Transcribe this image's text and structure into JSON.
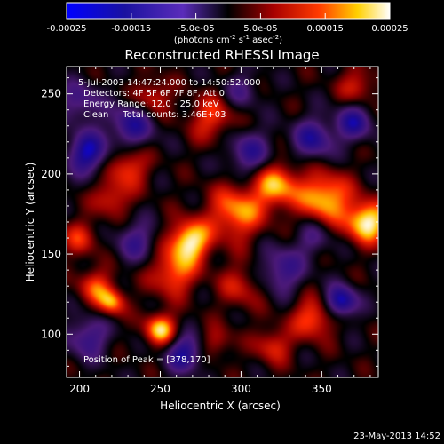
{
  "chart_data": {
    "type": "heatmap",
    "title": "Reconstructed RHESSI Image",
    "xlabel": "Heliocentric X (arcsec)",
    "ylabel": "Heliocentric Y (arcsec)",
    "xlim": [
      192,
      385
    ],
    "ylim": [
      73,
      267
    ],
    "x_ticks": [
      200,
      250,
      300,
      350
    ],
    "y_ticks": [
      100,
      150,
      200,
      250
    ],
    "colorbar": {
      "range": [
        -0.00025,
        0.00025
      ],
      "ticks": [
        "-0.00025",
        "-0.00015",
        "-5.0e-05",
        "5.0e-05",
        "0.00015",
        "0.00025"
      ],
      "tick_values": [
        -0.00025,
        -0.00015,
        -5e-05,
        5e-05,
        0.00015,
        0.00025
      ],
      "label_main": "(photons cm",
      "label_sup1": "-2",
      "label_mid1": " s",
      "label_sup2": "-1",
      "label_mid2": " asec",
      "label_sup3": "-2",
      "label_end": ")"
    },
    "annotations": [
      "5-Jul-2003 14:47:24.000 to 14:50:52.000",
      "Detectors: 4F 5F 6F 7F 8F, Att 0",
      "Energy Range: 12.0 - 25.0 keV",
      "Clean     Total counts: 3.46E+03"
    ],
    "peak_label": "Position of Peak = [378,170]",
    "peak": [
      378,
      170
    ],
    "sources": [
      {
        "x": 378,
        "y": 170,
        "v": 0.00025,
        "s": 9
      },
      {
        "x": 352,
        "y": 185,
        "v": 0.00021,
        "s": 11
      },
      {
        "x": 322,
        "y": 193,
        "v": 0.00019,
        "s": 10
      },
      {
        "x": 297,
        "y": 176,
        "v": 0.00018,
        "s": 12
      },
      {
        "x": 268,
        "y": 158,
        "v": 0.00024,
        "s": 9
      },
      {
        "x": 258,
        "y": 138,
        "v": 0.00016,
        "s": 10
      },
      {
        "x": 230,
        "y": 205,
        "v": 0.00014,
        "s": 9
      },
      {
        "x": 220,
        "y": 185,
        "v": 0.00012,
        "s": 8
      },
      {
        "x": 282,
        "y": 235,
        "v": 0.00013,
        "s": 10
      },
      {
        "x": 245,
        "y": 248,
        "v": 0.00012,
        "s": 8
      },
      {
        "x": 210,
        "y": 130,
        "v": 0.00013,
        "s": 8
      },
      {
        "x": 220,
        "y": 120,
        "v": 0.00017,
        "s": 6
      },
      {
        "x": 250,
        "y": 103,
        "v": 0.00021,
        "s": 7
      },
      {
        "x": 345,
        "y": 110,
        "v": 0.00016,
        "s": 9
      },
      {
        "x": 320,
        "y": 93,
        "v": 0.00012,
        "s": 8
      },
      {
        "x": 300,
        "y": 130,
        "v": 0.0001,
        "s": 10
      },
      {
        "x": 372,
        "y": 255,
        "v": 0.00011,
        "s": 8
      },
      {
        "x": 200,
        "y": 160,
        "v": 0.00011,
        "s": 8
      },
      {
        "x": 285,
        "y": 95,
        "v": 9e-05,
        "s": 7
      },
      {
        "x": 205,
        "y": 213,
        "v": -0.0002,
        "s": 9
      },
      {
        "x": 232,
        "y": 230,
        "v": -0.00016,
        "s": 10
      },
      {
        "x": 305,
        "y": 213,
        "v": -0.00014,
        "s": 10
      },
      {
        "x": 345,
        "y": 222,
        "v": -0.00016,
        "s": 9
      },
      {
        "x": 362,
        "y": 120,
        "v": -0.00022,
        "s": 7
      },
      {
        "x": 325,
        "y": 140,
        "v": -0.00014,
        "s": 10
      },
      {
        "x": 265,
        "y": 88,
        "v": -0.00018,
        "s": 8
      },
      {
        "x": 205,
        "y": 98,
        "v": -0.00014,
        "s": 9
      },
      {
        "x": 235,
        "y": 158,
        "v": -0.00012,
        "s": 9
      },
      {
        "x": 370,
        "y": 232,
        "v": -0.00016,
        "s": 8
      },
      {
        "x": 200,
        "y": 245,
        "v": -0.00012,
        "s": 9
      },
      {
        "x": 345,
        "y": 160,
        "v": -9e-05,
        "s": 8
      },
      {
        "x": 300,
        "y": 252,
        "v": -9e-05,
        "s": 8
      }
    ]
  },
  "footer": {
    "timestamp": "23-May-2013 14:52"
  }
}
